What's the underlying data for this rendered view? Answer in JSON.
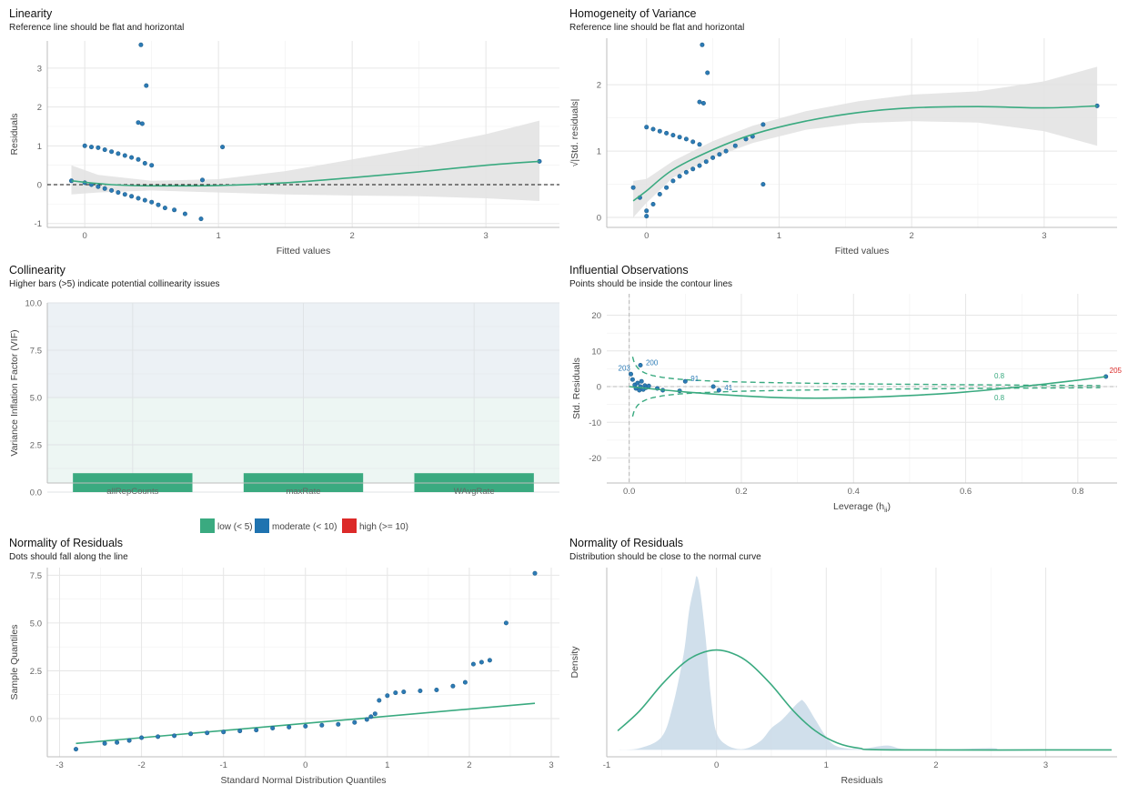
{
  "colors": {
    "point": "#2c7bb6",
    "point_dark": "#1f5f8b",
    "green": "#3aaa80",
    "ribbon": "#e2e2e2",
    "grid": "#e6e6e6",
    "low": "#3aaa80",
    "moderate": "#1f73b0",
    "high": "#dc2a29",
    "density_fill": "#c8d9e8",
    "zone_low": "#edf6f3",
    "zone_mod": "#ecf1f5",
    "outlier_label": "#dc2a29"
  },
  "chart_data": [
    {
      "id": "linearity",
      "type": "scatter",
      "title": "Linearity",
      "subtitle": "Reference line should be flat and horizontal",
      "xlabel": "Fitted values",
      "ylabel": "Residuals",
      "xlim": [
        -0.28,
        3.55
      ],
      "ylim": [
        -1.1,
        3.7
      ],
      "xticks": [
        0,
        1,
        2,
        3
      ],
      "yticks": [
        -1,
        0,
        1,
        2,
        3
      ],
      "reference_line_y": 0,
      "points": [
        [
          -0.1,
          0.1
        ],
        [
          0.0,
          1.0
        ],
        [
          0.05,
          0.97
        ],
        [
          0.1,
          0.95
        ],
        [
          0.15,
          0.9
        ],
        [
          0.2,
          0.85
        ],
        [
          0.25,
          0.8
        ],
        [
          0.3,
          0.75
        ],
        [
          0.35,
          0.7
        ],
        [
          0.4,
          0.65
        ],
        [
          0.45,
          0.55
        ],
        [
          0.5,
          0.5
        ],
        [
          0.42,
          3.6
        ],
        [
          0.46,
          2.55
        ],
        [
          0.4,
          1.6
        ],
        [
          0.43,
          1.57
        ],
        [
          1.03,
          0.97
        ],
        [
          0.88,
          0.12
        ],
        [
          0.0,
          0.05
        ],
        [
          0.05,
          0.0
        ],
        [
          0.1,
          -0.05
        ],
        [
          0.15,
          -0.1
        ],
        [
          0.2,
          -0.15
        ],
        [
          0.25,
          -0.2
        ],
        [
          0.3,
          -0.25
        ],
        [
          0.35,
          -0.3
        ],
        [
          0.4,
          -0.35
        ],
        [
          0.45,
          -0.4
        ],
        [
          0.5,
          -0.45
        ],
        [
          0.55,
          -0.52
        ],
        [
          0.6,
          -0.6
        ],
        [
          0.67,
          -0.65
        ],
        [
          0.75,
          -0.75
        ],
        [
          0.87,
          -0.88
        ],
        [
          3.4,
          0.6
        ]
      ],
      "trend": [
        [
          -0.1,
          0.1
        ],
        [
          0.2,
          0.0
        ],
        [
          0.5,
          -0.03
        ],
        [
          1.0,
          -0.02
        ],
        [
          1.5,
          0.05
        ],
        [
          2.0,
          0.18
        ],
        [
          2.5,
          0.33
        ],
        [
          3.0,
          0.5
        ],
        [
          3.4,
          0.6
        ]
      ],
      "band_upper": [
        [
          -0.1,
          0.5
        ],
        [
          0.1,
          0.25
        ],
        [
          0.5,
          0.1
        ],
        [
          1.0,
          0.14
        ],
        [
          1.5,
          0.35
        ],
        [
          2.0,
          0.65
        ],
        [
          2.5,
          0.95
        ],
        [
          3.0,
          1.3
        ],
        [
          3.4,
          1.65
        ]
      ],
      "band_lower": [
        [
          -0.1,
          -0.25
        ],
        [
          0.1,
          -0.2
        ],
        [
          0.5,
          -0.15
        ],
        [
          1.0,
          -0.2
        ],
        [
          1.5,
          -0.25
        ],
        [
          2.0,
          -0.28
        ],
        [
          2.5,
          -0.3
        ],
        [
          3.0,
          -0.35
        ],
        [
          3.4,
          -0.42
        ]
      ]
    },
    {
      "id": "homogeneity",
      "type": "scatter",
      "title": "Homogeneity of Variance",
      "subtitle": "Reference line should be flat and horizontal",
      "xlabel": "Fitted values",
      "ylabel": "√|Std. residuals|",
      "xlim": [
        -0.3,
        3.55
      ],
      "ylim": [
        -0.15,
        2.7
      ],
      "xticks": [
        0,
        1,
        2,
        3
      ],
      "yticks": [
        0,
        1,
        2
      ],
      "points": [
        [
          -0.1,
          0.45
        ],
        [
          -0.05,
          0.3
        ],
        [
          0.0,
          0.1
        ],
        [
          0.0,
          0.02
        ],
        [
          0.0,
          1.36
        ],
        [
          0.05,
          1.33
        ],
        [
          0.1,
          1.3
        ],
        [
          0.15,
          1.27
        ],
        [
          0.2,
          1.24
        ],
        [
          0.25,
          1.21
        ],
        [
          0.3,
          1.18
        ],
        [
          0.35,
          1.14
        ],
        [
          0.4,
          1.1
        ],
        [
          0.42,
          2.6
        ],
        [
          0.46,
          2.18
        ],
        [
          0.4,
          1.74
        ],
        [
          0.43,
          1.72
        ],
        [
          0.88,
          1.4
        ],
        [
          0.88,
          0.5
        ],
        [
          0.05,
          0.2
        ],
        [
          0.1,
          0.35
        ],
        [
          0.15,
          0.45
        ],
        [
          0.2,
          0.55
        ],
        [
          0.25,
          0.62
        ],
        [
          0.3,
          0.68
        ],
        [
          0.35,
          0.73
        ],
        [
          0.4,
          0.78
        ],
        [
          0.45,
          0.84
        ],
        [
          0.5,
          0.9
        ],
        [
          0.55,
          0.95
        ],
        [
          0.6,
          1.0
        ],
        [
          0.67,
          1.08
        ],
        [
          0.75,
          1.18
        ],
        [
          0.8,
          1.22
        ],
        [
          3.4,
          1.68
        ]
      ],
      "trend": [
        [
          -0.1,
          0.25
        ],
        [
          0.0,
          0.4
        ],
        [
          0.2,
          0.72
        ],
        [
          0.5,
          1.02
        ],
        [
          0.8,
          1.25
        ],
        [
          1.2,
          1.45
        ],
        [
          1.6,
          1.58
        ],
        [
          2.0,
          1.65
        ],
        [
          2.5,
          1.67
        ],
        [
          3.0,
          1.65
        ],
        [
          3.4,
          1.68
        ]
      ],
      "band_upper": [
        [
          -0.1,
          0.55
        ],
        [
          0.0,
          0.58
        ],
        [
          0.2,
          0.85
        ],
        [
          0.5,
          1.15
        ],
        [
          0.8,
          1.38
        ],
        [
          1.2,
          1.6
        ],
        [
          1.6,
          1.75
        ],
        [
          2.0,
          1.85
        ],
        [
          2.5,
          1.9
        ],
        [
          3.0,
          2.05
        ],
        [
          3.4,
          2.27
        ]
      ],
      "band_lower": [
        [
          -0.1,
          0.0
        ],
        [
          0.0,
          0.22
        ],
        [
          0.2,
          0.6
        ],
        [
          0.5,
          0.9
        ],
        [
          0.8,
          1.12
        ],
        [
          1.2,
          1.32
        ],
        [
          1.6,
          1.42
        ],
        [
          2.0,
          1.45
        ],
        [
          2.5,
          1.43
        ],
        [
          3.0,
          1.3
        ],
        [
          3.4,
          1.08
        ]
      ]
    },
    {
      "id": "collinearity",
      "type": "bar",
      "title": "Collinearity",
      "subtitle": "Higher bars (>5) indicate potential collinearity issues",
      "xlabel": "",
      "ylabel": "Variance Inflation Factor (VIF)",
      "categories": [
        "allRepCounts",
        "maxRate",
        "WAvgRate"
      ],
      "values": [
        1.0,
        1.0,
        1.0
      ],
      "ylim": [
        0,
        10
      ],
      "yticks": [
        0.0,
        2.5,
        5.0,
        7.5,
        10.0
      ],
      "ytick_labels": [
        "0.0",
        "2.5",
        "5.0",
        "7.5",
        "10.0"
      ],
      "legend": {
        "position": "bottom",
        "items": [
          {
            "label": "low (< 5)",
            "color": "#3aaa80"
          },
          {
            "label": "moderate (< 10)",
            "color": "#1f73b0"
          },
          {
            "label": "high (>= 10)",
            "color": "#dc2a29"
          }
        ]
      }
    },
    {
      "id": "influential",
      "type": "scatter",
      "title": "Influential Observations",
      "subtitle": "Points should be inside the contour lines",
      "xlabel": "Leverage (h",
      "xlabel_sub": "ii",
      "xlabel_close": ")",
      "ylabel": "Std. Residuals",
      "xlim": [
        -0.04,
        0.87
      ],
      "ylim": [
        -27,
        26
      ],
      "xticks": [
        0.0,
        0.2,
        0.4,
        0.6,
        0.8
      ],
      "xtick_labels": [
        "0.0",
        "0.2",
        "0.4",
        "0.6",
        "0.8"
      ],
      "yticks": [
        -20,
        -10,
        0,
        10,
        20
      ],
      "contour_label": "0.8",
      "points": [
        [
          0.003,
          3.5
        ],
        [
          0.006,
          2.0
        ],
        [
          0.01,
          0.5
        ],
        [
          0.012,
          -0.5
        ],
        [
          0.015,
          1.0
        ],
        [
          0.018,
          -1.0
        ],
        [
          0.02,
          0.0
        ],
        [
          0.022,
          1.5
        ],
        [
          0.025,
          -0.8
        ],
        [
          0.028,
          0.3
        ],
        [
          0.03,
          -0.3
        ],
        [
          0.035,
          0.2
        ],
        [
          0.02,
          6.0
        ],
        [
          0.05,
          -0.5
        ],
        [
          0.06,
          -1.0
        ],
        [
          0.1,
          1.5
        ],
        [
          0.15,
          0.0
        ],
        [
          0.16,
          -1.0
        ],
        [
          0.09,
          -1.2
        ],
        [
          0.85,
          2.8
        ]
      ],
      "labels": [
        {
          "text": "203",
          "x": 0.003,
          "y": 3.5,
          "color": "#2c7bb6"
        },
        {
          "text": "200",
          "x": 0.02,
          "y": 6.0,
          "color": "#2c7bb6"
        },
        {
          "text": "91",
          "x": 0.1,
          "y": 1.5,
          "color": "#2c7bb6"
        },
        {
          "text": "41",
          "x": 0.16,
          "y": -1.0,
          "color": "#2c7bb6"
        },
        {
          "text": "205",
          "x": 0.85,
          "y": 2.8,
          "color": "#dc2a29"
        }
      ],
      "trend": [
        [
          0.0,
          0.0
        ],
        [
          0.1,
          -1.5
        ],
        [
          0.2,
          -2.6
        ],
        [
          0.3,
          -3.2
        ],
        [
          0.4,
          -3.1
        ],
        [
          0.5,
          -2.5
        ],
        [
          0.6,
          -1.5
        ],
        [
          0.7,
          0.0
        ],
        [
          0.8,
          1.8
        ],
        [
          0.85,
          2.8
        ]
      ]
    },
    {
      "id": "qq",
      "type": "scatter",
      "title": "Normality of Residuals",
      "subtitle": "Dots should fall along the line",
      "xlabel": "Standard Normal Distribution Quantiles",
      "ylabel": "Sample Quantiles",
      "xlim": [
        -3.15,
        3.1
      ],
      "ylim": [
        -2.0,
        7.9
      ],
      "xticks": [
        -3,
        -2,
        -1,
        0,
        1,
        2,
        3
      ],
      "yticks": [
        0.0,
        2.5,
        5.0,
        7.5
      ],
      "ytick_labels": [
        "0.0",
        "2.5",
        "5.0",
        "7.5"
      ],
      "reference_line": [
        [
          -2.8,
          -1.3
        ],
        [
          2.8,
          0.8
        ]
      ],
      "points": [
        [
          -2.8,
          -1.6
        ],
        [
          -2.45,
          -1.3
        ],
        [
          -2.3,
          -1.25
        ],
        [
          -2.15,
          -1.15
        ],
        [
          -2.0,
          -1.0
        ],
        [
          -1.8,
          -0.95
        ],
        [
          -1.6,
          -0.9
        ],
        [
          -1.4,
          -0.8
        ],
        [
          -1.2,
          -0.75
        ],
        [
          -1.0,
          -0.7
        ],
        [
          -0.8,
          -0.65
        ],
        [
          -0.6,
          -0.6
        ],
        [
          -0.4,
          -0.5
        ],
        [
          -0.2,
          -0.45
        ],
        [
          0.0,
          -0.4
        ],
        [
          0.2,
          -0.35
        ],
        [
          0.4,
          -0.3
        ],
        [
          0.6,
          -0.2
        ],
        [
          0.75,
          -0.05
        ],
        [
          0.8,
          0.1
        ],
        [
          0.85,
          0.25
        ],
        [
          0.9,
          0.95
        ],
        [
          1.0,
          1.2
        ],
        [
          1.1,
          1.35
        ],
        [
          1.2,
          1.4
        ],
        [
          1.4,
          1.45
        ],
        [
          1.6,
          1.5
        ],
        [
          1.8,
          1.7
        ],
        [
          1.95,
          1.9
        ],
        [
          2.05,
          2.85
        ],
        [
          2.15,
          2.95
        ],
        [
          2.25,
          3.05
        ],
        [
          2.45,
          5.0
        ],
        [
          2.8,
          7.6
        ]
      ]
    },
    {
      "id": "density",
      "type": "area",
      "title": "Normality of Residuals",
      "subtitle": "Distribution should be close to the normal curve",
      "xlabel": "Residuals",
      "ylabel": "Density",
      "xlim": [
        -1.0,
        3.65
      ],
      "ylim": [
        -0.08,
        2.1
      ],
      "xticks": [
        -1,
        0,
        1,
        2,
        3
      ],
      "density": [
        [
          -0.9,
          0.0
        ],
        [
          -0.7,
          0.02
        ],
        [
          -0.5,
          0.15
        ],
        [
          -0.4,
          0.5
        ],
        [
          -0.3,
          1.1
        ],
        [
          -0.25,
          1.6
        ],
        [
          -0.2,
          1.9
        ],
        [
          -0.18,
          2.0
        ],
        [
          -0.15,
          1.85
        ],
        [
          -0.1,
          1.3
        ],
        [
          -0.05,
          0.6
        ],
        [
          0.0,
          0.2
        ],
        [
          0.1,
          0.05
        ],
        [
          0.25,
          0.01
        ],
        [
          0.4,
          0.1
        ],
        [
          0.5,
          0.25
        ],
        [
          0.6,
          0.35
        ],
        [
          0.75,
          0.55
        ],
        [
          0.8,
          0.55
        ],
        [
          0.9,
          0.35
        ],
        [
          1.0,
          0.15
        ],
        [
          1.1,
          0.04
        ],
        [
          1.3,
          0.01
        ],
        [
          1.55,
          0.05
        ],
        [
          1.7,
          0.01
        ],
        [
          2.0,
          0.0
        ],
        [
          2.5,
          0.02
        ],
        [
          2.6,
          0.0
        ],
        [
          3.0,
          0.0
        ],
        [
          3.6,
          0.0
        ]
      ],
      "normal_curve": [
        [
          -0.9,
          0.22
        ],
        [
          -0.7,
          0.45
        ],
        [
          -0.5,
          0.75
        ],
        [
          -0.3,
          1.0
        ],
        [
          -0.15,
          1.11
        ],
        [
          0.0,
          1.15
        ],
        [
          0.15,
          1.11
        ],
        [
          0.3,
          1.0
        ],
        [
          0.5,
          0.75
        ],
        [
          0.7,
          0.45
        ],
        [
          0.9,
          0.22
        ],
        [
          1.1,
          0.08
        ],
        [
          1.3,
          0.02
        ],
        [
          1.6,
          0.0
        ],
        [
          3.6,
          0.0
        ]
      ]
    }
  ]
}
